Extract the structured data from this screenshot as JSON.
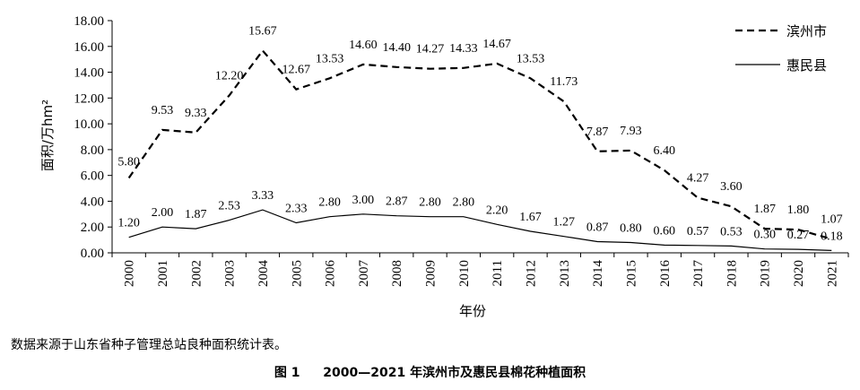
{
  "chart_data": {
    "type": "line",
    "categories": [
      "2000",
      "2001",
      "2002",
      "2003",
      "2004",
      "2005",
      "2006",
      "2007",
      "2008",
      "2009",
      "2010",
      "2011",
      "2012",
      "2013",
      "2014",
      "2015",
      "2016",
      "2017",
      "2018",
      "2019",
      "2020",
      "2021"
    ],
    "series": [
      {
        "name": "滨州市",
        "style": "dashed",
        "color": "#000000",
        "values": [
          5.8,
          9.53,
          9.33,
          12.2,
          15.67,
          12.67,
          13.53,
          14.6,
          14.4,
          14.27,
          14.33,
          14.67,
          13.53,
          11.73,
          7.87,
          7.93,
          6.4,
          4.27,
          3.6,
          1.87,
          1.8,
          1.07
        ]
      },
      {
        "name": "惠民县",
        "style": "solid",
        "color": "#000000",
        "values": [
          1.2,
          2.0,
          1.87,
          2.53,
          3.33,
          2.33,
          2.8,
          3.0,
          2.87,
          2.8,
          2.8,
          2.2,
          1.67,
          1.27,
          0.87,
          0.8,
          0.6,
          0.57,
          0.53,
          0.3,
          0.27,
          0.18
        ]
      }
    ],
    "xlabel": "年份",
    "ylabel": "面积/万hm²",
    "ylim": [
      0,
      18
    ],
    "yticks": [
      "0.00",
      "2.00",
      "4.00",
      "6.00",
      "8.00",
      "10.00",
      "12.00",
      "14.00",
      "16.00",
      "18.00"
    ],
    "grid": false,
    "legend_position": "top-right"
  },
  "source_note": "数据来源于山东省种子管理总站良种面积统计表。",
  "caption": {
    "number": "图 1",
    "text": "2000—2021 年滨州市及惠民县棉花种植面积"
  }
}
